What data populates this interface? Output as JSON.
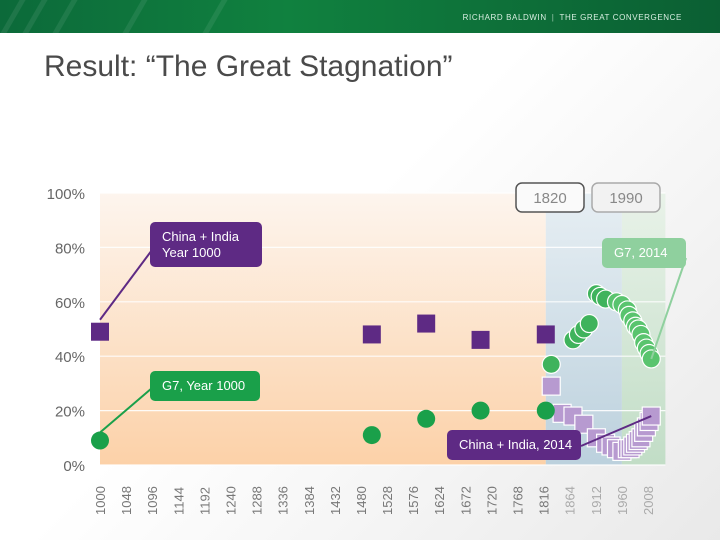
{
  "header": {
    "author": "RICHARD BALDWIN",
    "book": "THE GREAT CONVERGENCE",
    "title": "Result: “The Great Stagnation”"
  },
  "colors": {
    "header_green": "#10813f",
    "purple": "#5e2a84",
    "green": "#1aa04a",
    "light_purple": "#b79ad0",
    "light_green": "#8fd09e"
  },
  "chart_data": {
    "type": "scatter",
    "title": "",
    "xlabel": "",
    "ylabel": "",
    "ylim": [
      0,
      100
    ],
    "yticks": [
      0,
      20,
      40,
      60,
      80,
      100
    ],
    "ytick_labels": [
      "0%",
      "20%",
      "40%",
      "60%",
      "80%",
      "100%"
    ],
    "xticks": [
      1000,
      1048,
      1096,
      1144,
      1192,
      1240,
      1288,
      1336,
      1384,
      1432,
      1480,
      1528,
      1576,
      1624,
      1672,
      1720,
      1768,
      1816,
      1864,
      1912,
      1960,
      2008
    ],
    "xlim": [
      1000,
      2008
    ],
    "grid": true,
    "region_labels": [
      "1820",
      "1990"
    ],
    "series": [
      {
        "name": "China + India",
        "marker": "square",
        "color": "#5e2a84",
        "x": [
          1000,
          1500,
          1600,
          1700,
          1820,
          1830,
          1850,
          1870,
          1890,
          1913,
          1930,
          1940,
          1950,
          1960,
          1970,
          1975,
          1980,
          1985,
          1990,
          1995,
          2000,
          2005,
          2010,
          2014
        ],
        "y": [
          49,
          48,
          52,
          46,
          48,
          29,
          19,
          18,
          15,
          10,
          8,
          7,
          6,
          5,
          6,
          6,
          7,
          8,
          9,
          10,
          12,
          14,
          16,
          18
        ]
      },
      {
        "name": "G7",
        "marker": "circle",
        "color": "#1aa04a",
        "x": [
          1000,
          1500,
          1600,
          1700,
          1820,
          1830,
          1870,
          1880,
          1890,
          1900,
          1913,
          1920,
          1930,
          1950,
          1960,
          1970,
          1973,
          1980,
          1985,
          1990,
          1995,
          2000,
          2005,
          2010,
          2014
        ],
        "y": [
          9,
          11,
          17,
          20,
          20,
          37,
          46,
          48,
          50,
          52,
          63,
          62,
          61,
          60,
          59,
          57,
          55,
          53,
          51,
          50,
          48,
          45,
          43,
          41,
          39
        ]
      }
    ],
    "annotations": [
      {
        "label_lines": [
          "China + India",
          "Year 1000"
        ],
        "color": "#5e2a84"
      },
      {
        "label_lines": [
          "G7, Year 1000"
        ],
        "color": "#1aa04a"
      },
      {
        "label_lines": [
          "G7, 2014"
        ],
        "color": "#8fd09e"
      },
      {
        "label_lines": [
          "China + India, 2014"
        ],
        "color": "#5e2a84"
      }
    ]
  }
}
